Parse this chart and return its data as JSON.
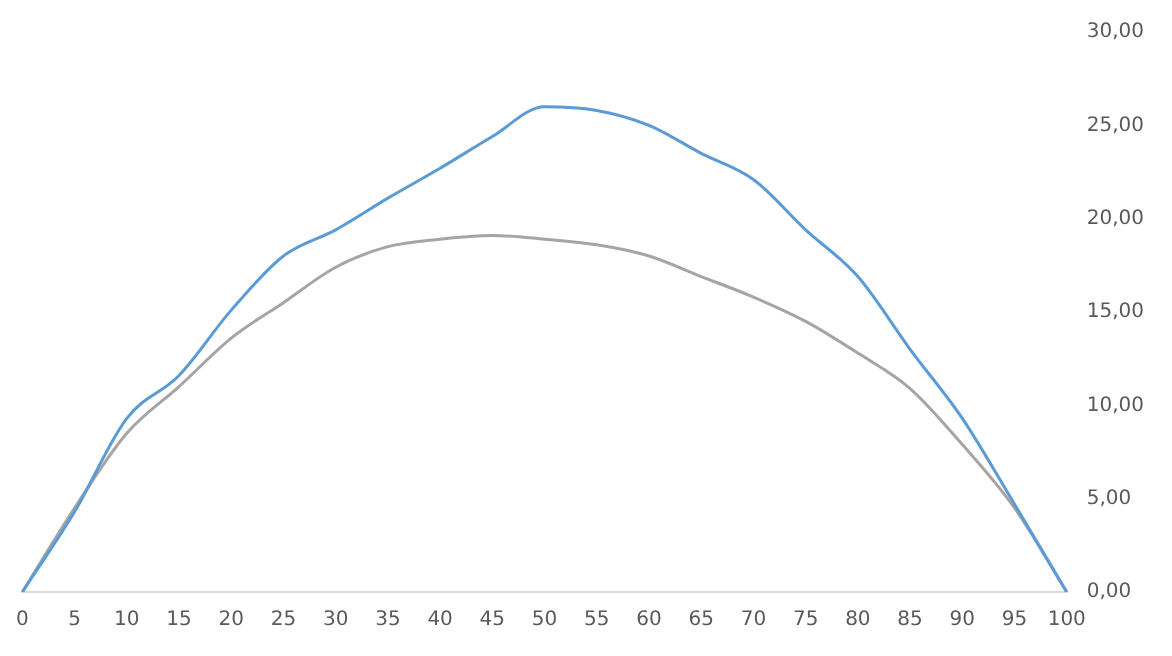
{
  "chart_data": {
    "type": "line",
    "categories": [
      "0",
      "5",
      "10",
      "15",
      "20",
      "25",
      "30",
      "35",
      "40",
      "45",
      "50",
      "55",
      "60",
      "65",
      "70",
      "75",
      "80",
      "85",
      "90",
      "95",
      "100"
    ],
    "series": [
      {
        "color": "#5b9bd5",
        "values": [
          0,
          4.3,
          9.3,
          11.6,
          15.1,
          18.0,
          19.4,
          21.1,
          22.7,
          24.4,
          26.0,
          25.8,
          25.0,
          23.5,
          22.1,
          19.4,
          16.9,
          13.0,
          9.3,
          4.7,
          0
        ]
      },
      {
        "color": "#a5a5a5",
        "values": [
          0,
          4.5,
          8.5,
          11.0,
          13.6,
          15.5,
          17.4,
          18.5,
          18.9,
          19.1,
          18.9,
          18.6,
          18.0,
          16.9,
          15.8,
          14.5,
          12.8,
          10.9,
          7.9,
          4.5,
          0
        ]
      }
    ],
    "ylim": [
      0,
      30
    ],
    "yticks": [
      {
        "value": 0,
        "label": "0,00"
      },
      {
        "value": 5,
        "label": "5,00"
      },
      {
        "value": 10,
        "label": "10,00"
      },
      {
        "value": 15,
        "label": "15,00"
      },
      {
        "value": 20,
        "label": "20,00"
      },
      {
        "value": 25,
        "label": "25,00"
      },
      {
        "value": 30,
        "label": "30,00"
      }
    ],
    "grid": false,
    "legend": false,
    "marker": "none",
    "line_style": "solid"
  }
}
